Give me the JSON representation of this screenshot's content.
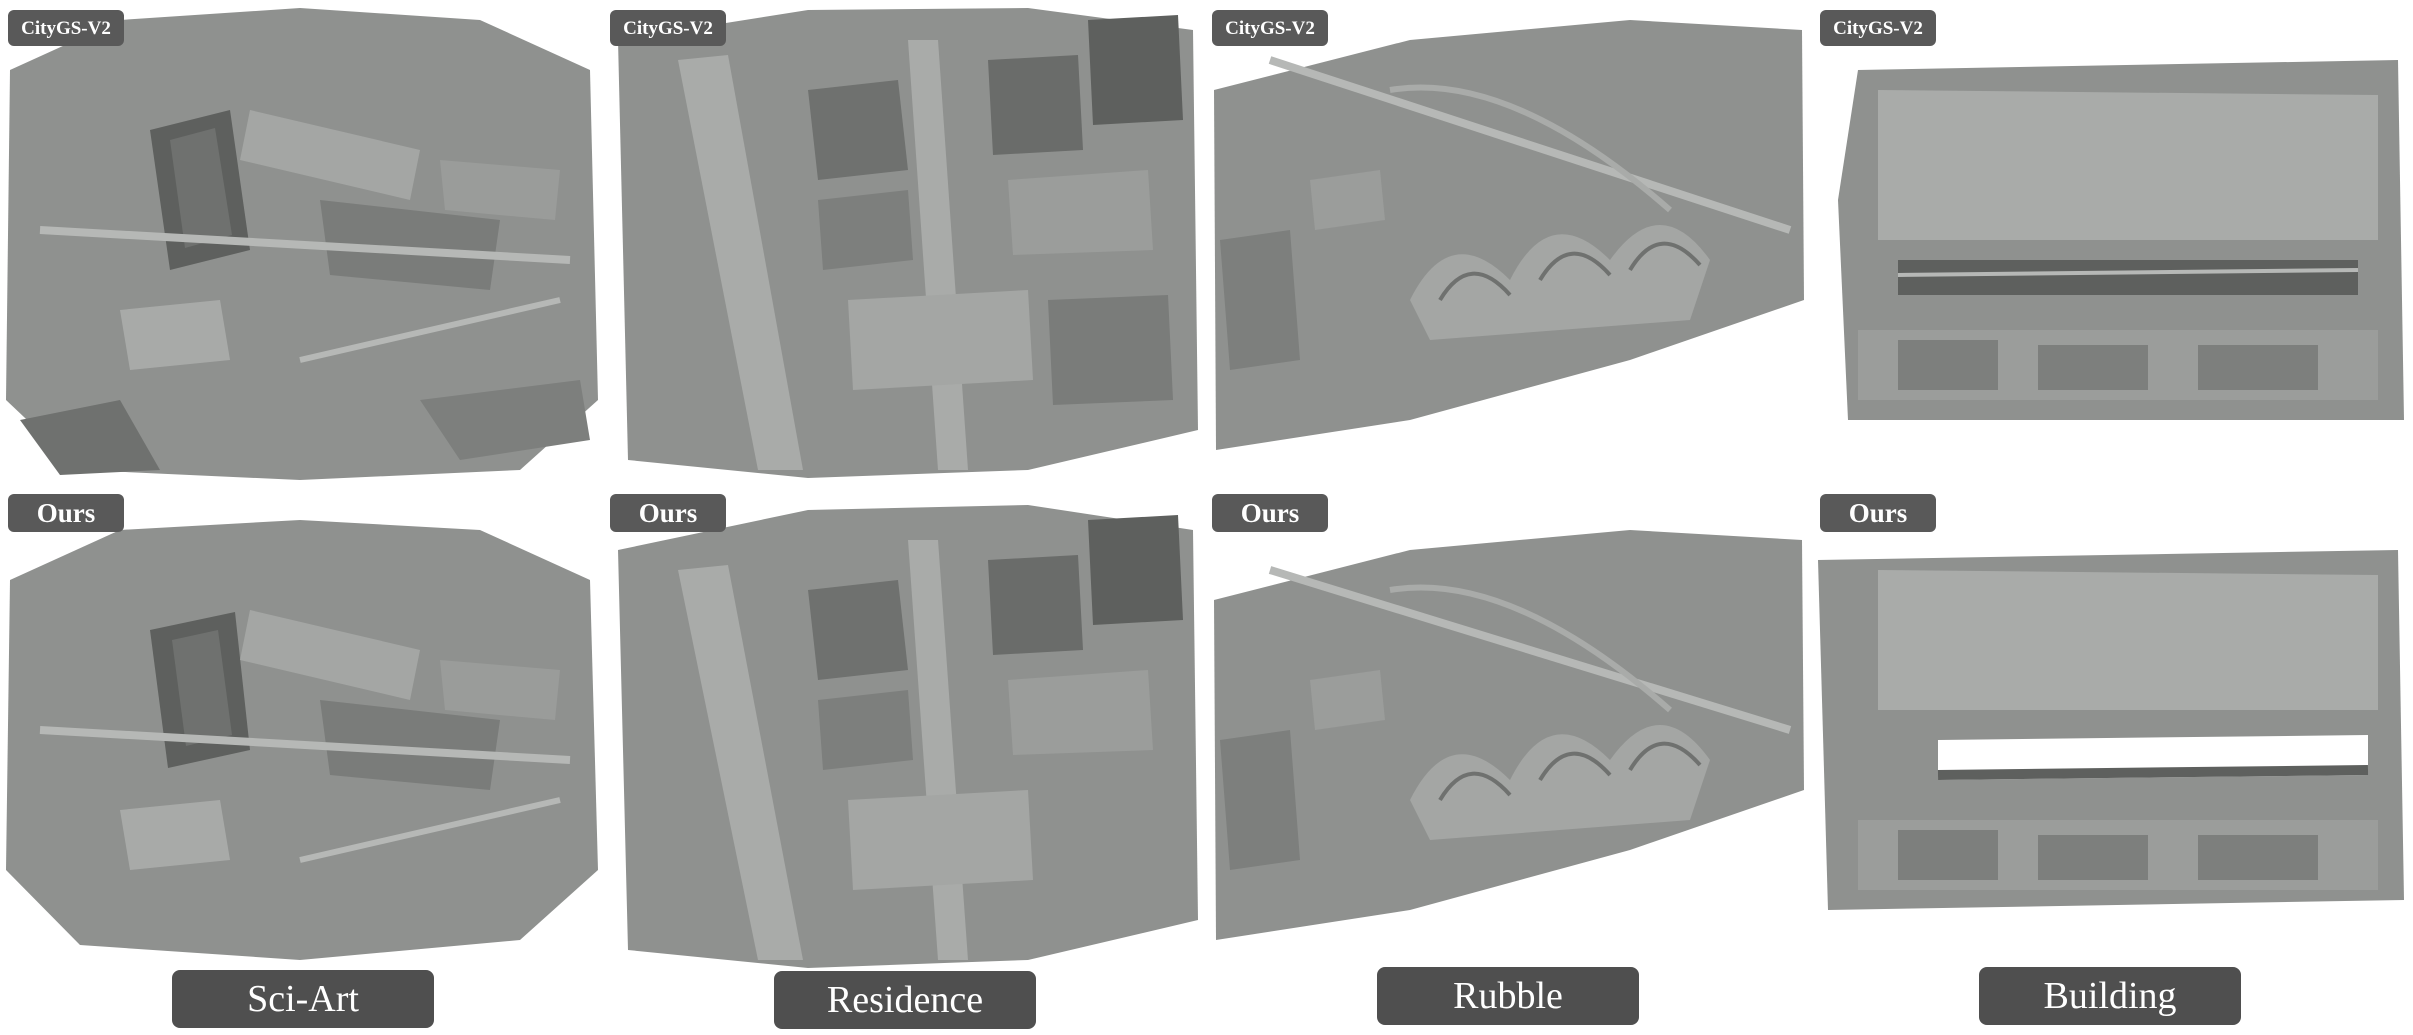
{
  "columns": [
    {
      "scene": "Sci-Art",
      "top_method": "CityGS-V2",
      "bottom_method": "Ours"
    },
    {
      "scene": "Residence",
      "top_method": "CityGS-V2",
      "bottom_method": "Ours"
    },
    {
      "scene": "Rubble",
      "top_method": "CityGS-V2",
      "bottom_method": "Ours"
    },
    {
      "scene": "Building",
      "top_method": "CityGS-V2",
      "bottom_method": "Ours"
    }
  ],
  "colors": {
    "mesh_base": "#8f918f",
    "mesh_dark": "#5e605e",
    "mesh_light": "#b6b8b6",
    "label_bg": "#595959",
    "label_text": "#ffffff"
  }
}
